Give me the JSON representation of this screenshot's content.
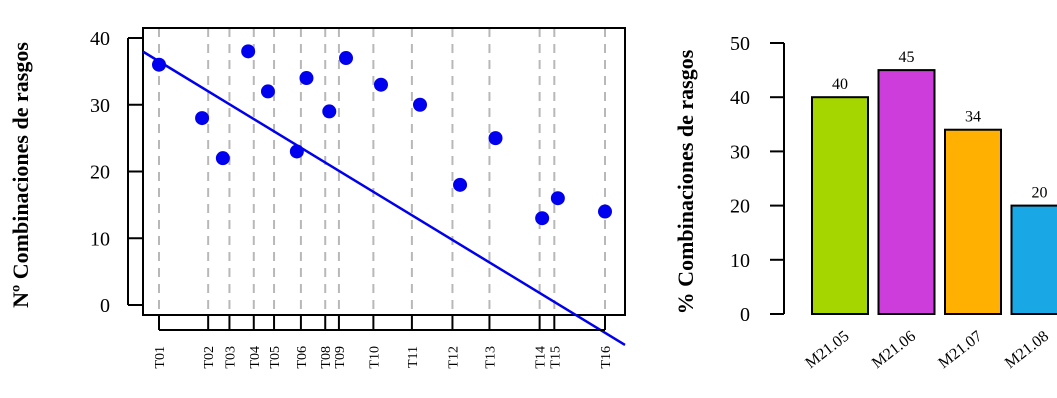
{
  "chart_data": [
    {
      "type": "scatter",
      "ylabel": "Nº Combinaciones de rasgos",
      "xlabel": "",
      "ylim": [
        0,
        40
      ],
      "yticks": [
        0,
        10,
        20,
        30,
        40
      ],
      "grid": "vertical dashed lines at each x tick",
      "points_color": "#0000ee",
      "trendline_color": "#0000ee",
      "trendline": {
        "intercept": 36.5,
        "slope": -0.0462
      },
      "x_ticks": [
        {
          "label": "T01",
          "x": 0
        },
        {
          "label": "T02",
          "x": 97
        },
        {
          "label": "T03",
          "x": 139
        },
        {
          "label": "T04",
          "x": 187
        },
        {
          "label": "T05",
          "x": 227
        },
        {
          "label": "T06",
          "x": 280
        },
        {
          "label": "T08",
          "x": 328
        },
        {
          "label": "T09",
          "x": 355
        },
        {
          "label": "T10",
          "x": 423
        },
        {
          "label": "T11",
          "x": 499
        },
        {
          "label": "T12",
          "x": 579
        },
        {
          "label": "T13",
          "x": 652
        },
        {
          "label": "T14",
          "x": 751
        },
        {
          "label": "T15",
          "x": 780
        },
        {
          "label": "T16",
          "x": 880
        }
      ],
      "points": [
        {
          "x": 0,
          "y": 36
        },
        {
          "x": 85,
          "y": 28
        },
        {
          "x": 126,
          "y": 22
        },
        {
          "x": 176,
          "y": 38
        },
        {
          "x": 215,
          "y": 32
        },
        {
          "x": 272,
          "y": 23
        },
        {
          "x": 291,
          "y": 34
        },
        {
          "x": 336,
          "y": 29
        },
        {
          "x": 369,
          "y": 37
        },
        {
          "x": 438,
          "y": 33
        },
        {
          "x": 515,
          "y": 30
        },
        {
          "x": 594,
          "y": 18
        },
        {
          "x": 664,
          "y": 25
        },
        {
          "x": 756,
          "y": 13
        },
        {
          "x": 787,
          "y": 16
        },
        {
          "x": 880,
          "y": 14
        }
      ]
    },
    {
      "type": "bar",
      "ylabel": "% Combinaciones de rasgos",
      "xlabel": "",
      "ylim": [
        0,
        50
      ],
      "yticks": [
        0,
        10,
        20,
        30,
        40,
        50
      ],
      "categories": [
        "M21.05",
        "M21.06",
        "M21.07",
        "M21.08"
      ],
      "values": [
        40,
        45,
        34,
        20
      ],
      "data_labels": [
        "40",
        "45",
        "34",
        "20"
      ],
      "colors": [
        "#a6d600",
        "#cc3ddb",
        "#ffb000",
        "#1aa7e6"
      ]
    }
  ]
}
